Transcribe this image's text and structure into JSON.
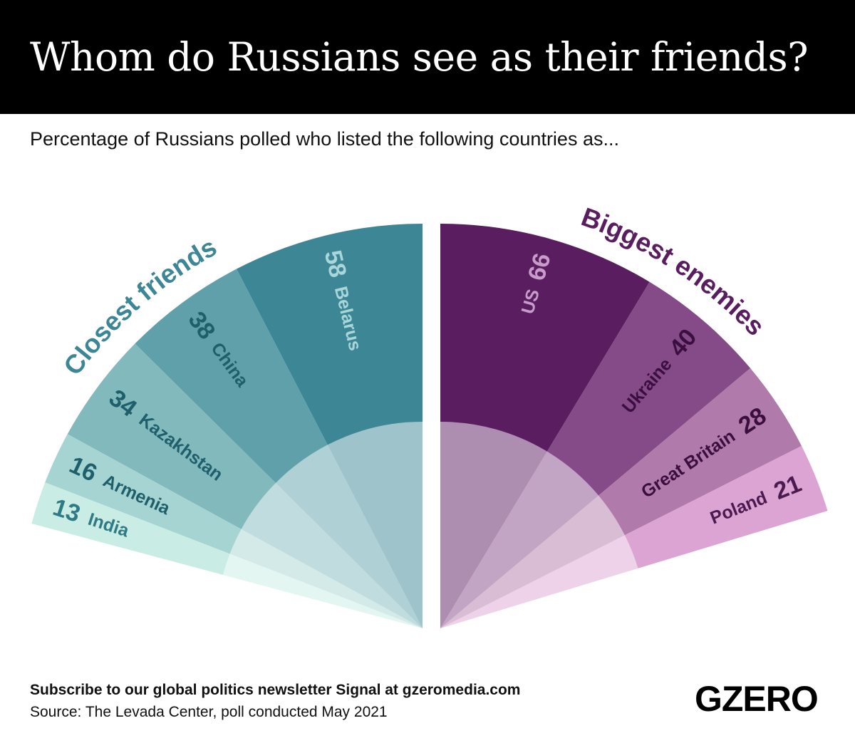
{
  "header": {
    "title": "Whom do Russians see as their friends?"
  },
  "subtitle": "Percentage of Russians polled who listed the following countries as...",
  "footer": {
    "subscribe": "Subscribe to our global politics newsletter Signal at gzeromedia.com",
    "source": "Source: The Levada Center, poll conducted May 2021",
    "logo": "GZERO"
  },
  "chart_data": [
    {
      "type": "pie",
      "title": "Closest friends",
      "color": "#3c8696",
      "categories": [
        "Belarus",
        "China",
        "Kazakhstan",
        "Armenia",
        "India"
      ],
      "values": [
        58,
        38,
        34,
        16,
        13
      ],
      "colors": [
        "#3c8696",
        "#5fa0aa",
        "#82b9bd",
        "#a6d4d2",
        "#c9ede4"
      ],
      "number_colors": [
        "#a9d6d8",
        "#1f5f6c",
        "#1f5f6c",
        "#1f5f6c",
        "#2f7a85"
      ]
    },
    {
      "type": "pie",
      "title": "Biggest enemies",
      "color": "#5a1d60",
      "categories": [
        "US",
        "Ukraine",
        "Great Britain",
        "Poland"
      ],
      "values": [
        66,
        40,
        28,
        21
      ],
      "colors": [
        "#5a1d60",
        "#854a88",
        "#b07aab",
        "#dba4d3"
      ],
      "number_colors": [
        "#c79ccb",
        "#3a0f40",
        "#3a0f40",
        "#4a1a50"
      ]
    }
  ]
}
